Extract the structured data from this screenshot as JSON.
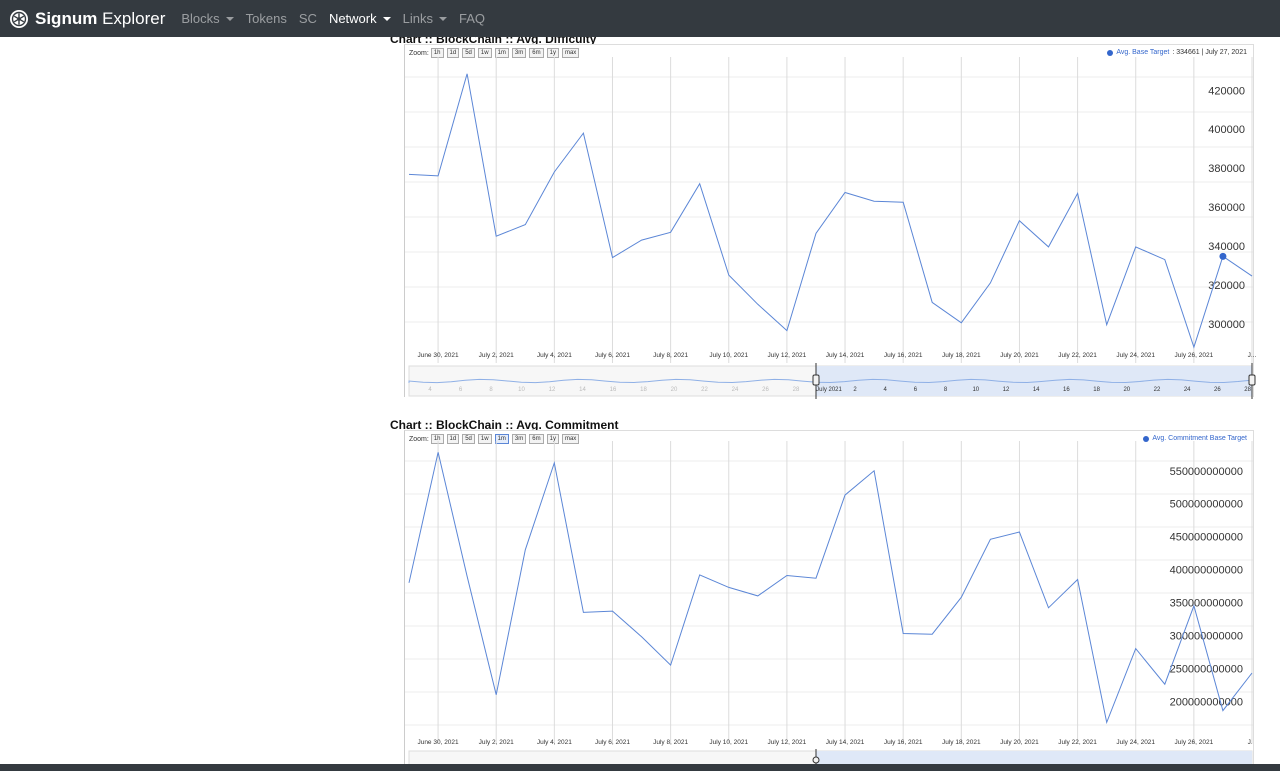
{
  "navbar": {
    "brand_bold": "Signum",
    "brand_rest": " Explorer",
    "items": [
      {
        "label": "Blocks",
        "dropdown": true,
        "active": false
      },
      {
        "label": "Tokens",
        "dropdown": false,
        "active": false
      },
      {
        "label": "SC",
        "dropdown": false,
        "active": false
      },
      {
        "label": "Network",
        "dropdown": true,
        "active": true
      },
      {
        "label": "Links",
        "dropdown": true,
        "active": false
      },
      {
        "label": "FAQ",
        "dropdown": false,
        "active": false
      }
    ]
  },
  "zoom": {
    "label": "Zoom:",
    "options": [
      "1h",
      "1d",
      "5d",
      "1w",
      "1m",
      "3m",
      "6m",
      "1y",
      "max"
    ]
  },
  "colors": {
    "series": "#5b86d6",
    "legend": "#3366cc",
    "navbar": "#343a40"
  },
  "chart_data": [
    {
      "type": "line",
      "title": "Chart :: BlockChain :: Avg. Difficulty",
      "legend": {
        "name": "Avg. Base Target",
        "value": "334661",
        "date": "July 27, 2021",
        "placement": "top-right"
      },
      "zoom_selected": null,
      "x_labels": [
        "June 30, 2021",
        "July 2, 2021",
        "July 4, 2021",
        "July 6, 2021",
        "July 8, 2021",
        "July 10, 2021",
        "July 12, 2021",
        "July 14, 2021",
        "July 16, 2021",
        "July 18, 2021",
        "July 20, 2021",
        "July 22, 2021",
        "July 24, 2021",
        "July 26, 2021",
        "J..."
      ],
      "y_ticks": [
        300000,
        320000,
        340000,
        360000,
        380000,
        400000,
        420000
      ],
      "ylim": [
        286000,
        432000
      ],
      "x": [
        "June 29, 2021",
        "June 30, 2021",
        "July 1, 2021",
        "July 2, 2021",
        "July 3, 2021",
        "July 4, 2021",
        "July 5, 2021",
        "July 6, 2021",
        "July 7, 2021",
        "July 8, 2021",
        "July 9, 2021",
        "July 10, 2021",
        "July 11, 2021",
        "July 12, 2021",
        "July 13, 2021",
        "July 14, 2021",
        "July 15, 2021",
        "July 16, 2021",
        "July 17, 2021",
        "July 18, 2021",
        "July 19, 2021",
        "July 20, 2021",
        "July 21, 2021",
        "July 22, 2021",
        "July 23, 2021",
        "July 24, 2021",
        "July 25, 2021",
        "July 26, 2021",
        "July 27, 2021",
        "July 28, 2021"
      ],
      "values": [
        376800,
        376000,
        428500,
        345000,
        351000,
        378000,
        398000,
        334000,
        343000,
        347000,
        372000,
        325000,
        310000,
        296500,
        346500,
        367500,
        363000,
        362500,
        311000,
        300500,
        321000,
        353000,
        339500,
        367000,
        299500,
        339500,
        333000,
        288000,
        334661,
        324500
      ],
      "highlight_index": 28,
      "navigator": {
        "labels_left": [
          "4",
          "6",
          "8",
          "10",
          "12",
          "14",
          "16",
          "18",
          "20",
          "22",
          "24",
          "26",
          "28"
        ],
        "month_label": "July 2021",
        "labels_right": [
          "2",
          "4",
          "6",
          "8",
          "10",
          "12",
          "14",
          "16",
          "18",
          "20",
          "22",
          "24",
          "26",
          "28"
        ]
      },
      "grid": true
    },
    {
      "type": "line",
      "title": "Chart :: BlockChain :: Avg. Commitment",
      "legend": {
        "name": "Avg. Commitment Base Target",
        "placement": "top-right"
      },
      "zoom_selected": "1m",
      "x_labels": [
        "June 30, 2021",
        "July 2, 2021",
        "July 4, 2021",
        "July 6, 2021",
        "July 8, 2021",
        "July 10, 2021",
        "July 12, 2021",
        "July 14, 2021",
        "July 16, 2021",
        "July 18, 2021",
        "July 20, 2021",
        "July 22, 2021",
        "July 24, 2021",
        "July 26, 2021",
        "J..."
      ],
      "y_ticks": [
        200000000000,
        250000000000,
        300000000000,
        350000000000,
        400000000000,
        450000000000,
        500000000000,
        550000000000
      ],
      "y_tick_labels": [
        "200000000000",
        "250000000000",
        "300000000000",
        "350000000000",
        "400000000000",
        "450000000000",
        "500000000000",
        "550000000000"
      ],
      "ylim": [
        155000000000,
        580000000000
      ],
      "x": [
        "June 29, 2021",
        "June 30, 2021",
        "July 1, 2021",
        "July 2, 2021",
        "July 3, 2021",
        "July 4, 2021",
        "July 5, 2021",
        "July 6, 2021",
        "July 7, 2021",
        "July 8, 2021",
        "July 9, 2021",
        "July 10, 2021",
        "July 11, 2021",
        "July 12, 2021",
        "July 13, 2021",
        "July 14, 2021",
        "July 15, 2021",
        "July 16, 2021",
        "July 17, 2021",
        "July 18, 2021",
        "July 19, 2021",
        "July 20, 2021",
        "July 21, 2021",
        "July 22, 2021",
        "July 23, 2021",
        "July 24, 2021",
        "July 25, 2021",
        "July 26, 2021",
        "July 27, 2021",
        "July 28, 2021"
      ],
      "values": [
        380000000000,
        578000000000,
        390000000000,
        210000000000,
        430000000000,
        562000000000,
        335000000000,
        337000000000,
        298000000000,
        255000000000,
        392000000000,
        373000000000,
        360000000000,
        391000000000,
        387000000000,
        513000000000,
        550000000000,
        303000000000,
        302000000000,
        358000000000,
        446000000000,
        457000000000,
        342000000000,
        385000000000,
        168000000000,
        280000000000,
        226000000000,
        345000000000,
        186000000000,
        243000000000
      ],
      "grid": true
    }
  ]
}
